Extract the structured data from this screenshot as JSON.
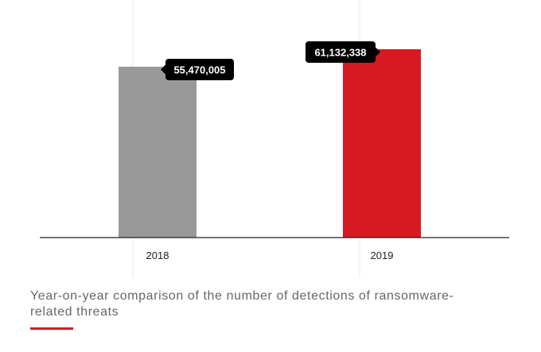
{
  "chart_data": {
    "type": "bar",
    "categories": [
      "2018",
      "2019"
    ],
    "values": [
      55470005,
      61132338
    ],
    "value_labels": [
      "55,470,005",
      "61,132,338"
    ],
    "colors": [
      "#999999",
      "#d71921"
    ],
    "title": "",
    "xlabel": "",
    "ylabel": "",
    "ylim": [
      0,
      65000000
    ],
    "grid": "vertical",
    "legend": "none"
  },
  "caption": {
    "text": "Year-on-year comparison of the number of detections of ransomware-related threats"
  },
  "colors": {
    "accent": "#d71921",
    "label_bg": "#000000",
    "axis": "#222222",
    "gridline": "#e8e8e8"
  }
}
